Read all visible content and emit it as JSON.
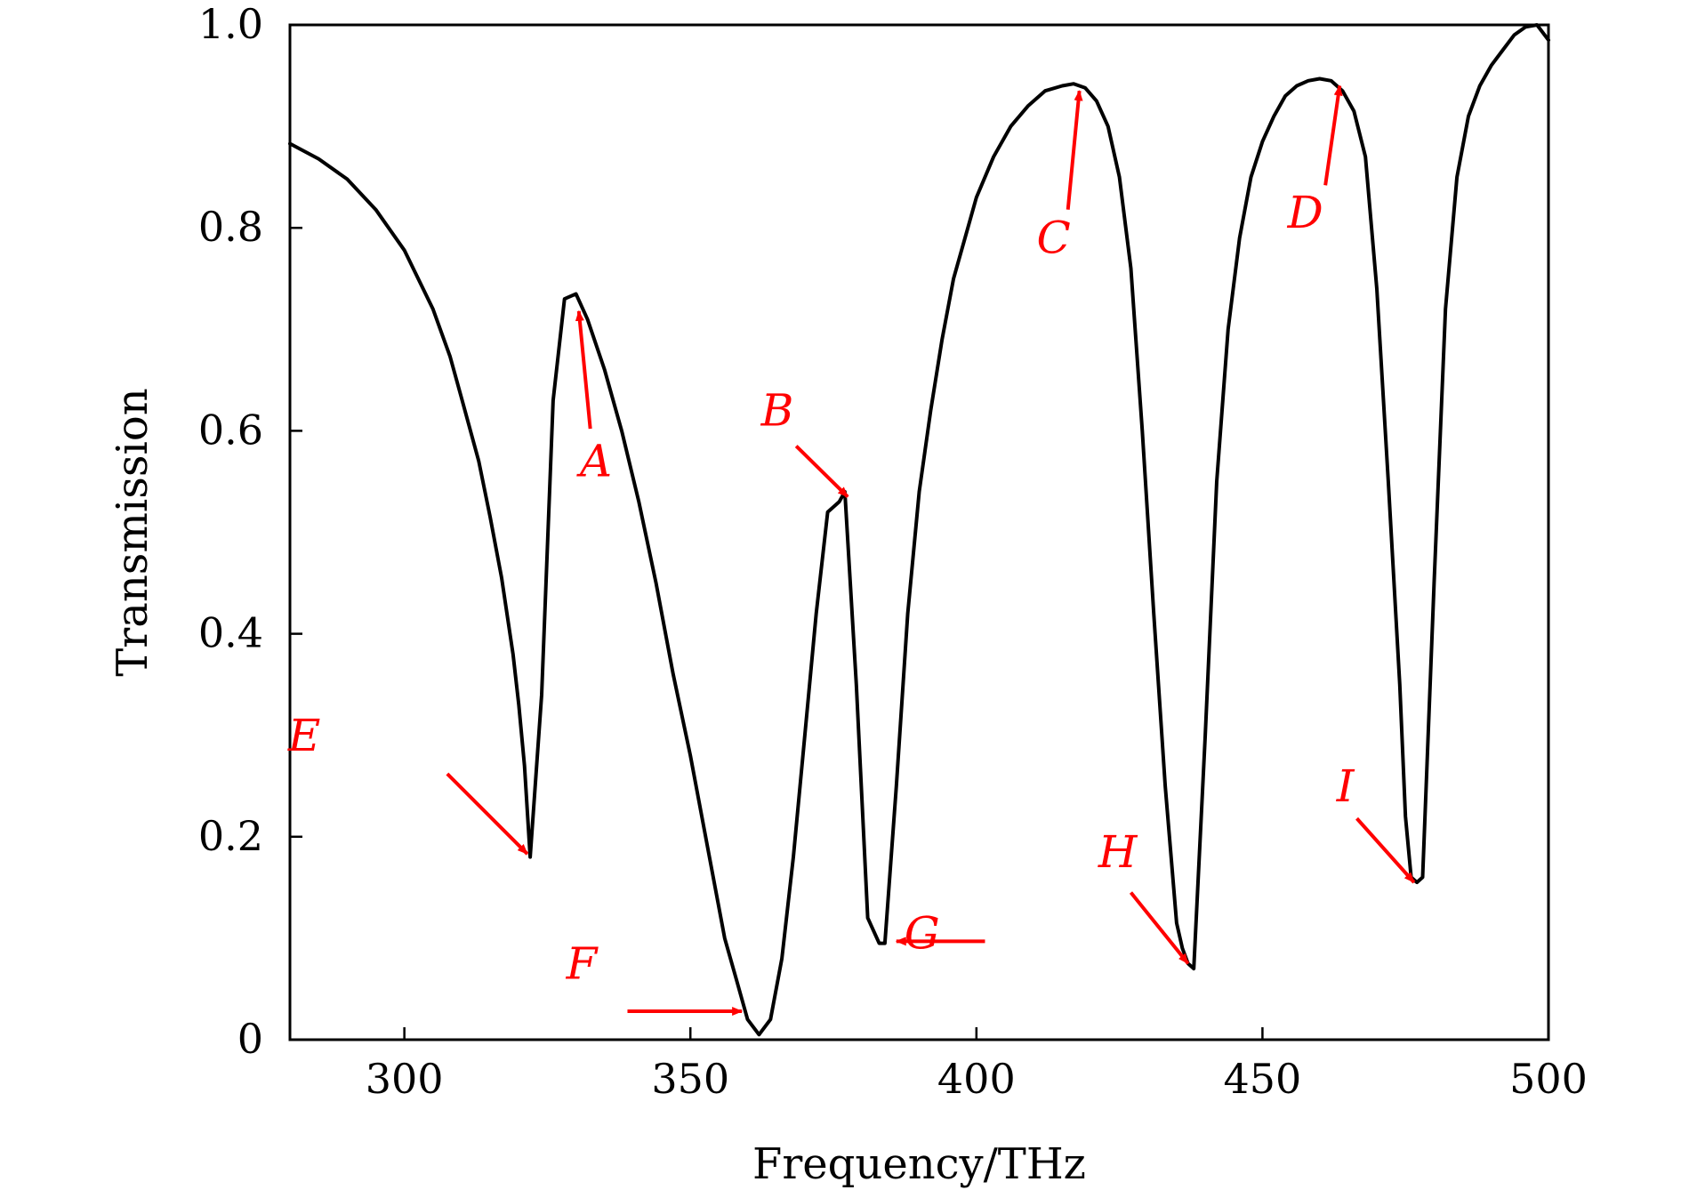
{
  "chart_data": {
    "type": "line",
    "title": "",
    "xlabel": "Frequency/THz",
    "ylabel": "Transmission",
    "xlim": [
      280,
      500
    ],
    "ylim": [
      0,
      1.0
    ],
    "grid": false,
    "x_ticks": [
      300,
      350,
      400,
      450,
      500
    ],
    "x_tick_labels": [
      "300",
      "350",
      "400",
      "450",
      "500"
    ],
    "y_ticks": [
      0,
      0.2,
      0.4,
      0.6,
      0.8,
      1.0
    ],
    "y_tick_labels": [
      "0",
      "0.2",
      "0.4",
      "0.6",
      "0.8",
      "1.0"
    ],
    "series": [
      {
        "color": "#000000",
        "x": [
          280,
          285,
          290,
          295,
          300,
          305,
          308,
          310,
          313,
          315,
          317,
          319,
          320,
          321,
          322,
          324,
          326,
          328,
          330,
          332,
          335,
          338,
          341,
          344,
          347,
          350,
          353,
          356,
          358,
          360,
          362,
          364,
          366,
          368,
          370,
          372,
          374,
          376,
          377,
          379,
          381,
          383,
          384,
          386,
          388,
          390,
          392,
          394,
          396,
          398,
          400,
          403,
          406,
          409,
          412,
          415,
          417,
          419,
          421,
          423,
          425,
          427,
          429,
          431,
          433,
          435,
          436,
          437,
          438,
          440,
          442,
          444,
          446,
          448,
          450,
          452,
          454,
          456,
          458,
          460,
          462,
          464,
          466,
          468,
          470,
          472,
          474,
          475,
          476,
          477,
          478,
          480,
          482,
          484,
          486,
          488,
          490,
          492,
          494,
          496,
          498,
          500
        ],
        "y": [
          0.883,
          0.868,
          0.848,
          0.818,
          0.778,
          0.72,
          0.673,
          0.632,
          0.57,
          0.515,
          0.455,
          0.38,
          0.33,
          0.27,
          0.18,
          0.34,
          0.63,
          0.73,
          0.735,
          0.71,
          0.66,
          0.6,
          0.53,
          0.45,
          0.36,
          0.28,
          0.19,
          0.1,
          0.06,
          0.02,
          0.005,
          0.02,
          0.08,
          0.18,
          0.3,
          0.42,
          0.52,
          0.53,
          0.54,
          0.35,
          0.12,
          0.095,
          0.095,
          0.25,
          0.42,
          0.54,
          0.62,
          0.69,
          0.75,
          0.79,
          0.83,
          0.87,
          0.9,
          0.92,
          0.935,
          0.94,
          0.942,
          0.938,
          0.925,
          0.9,
          0.85,
          0.76,
          0.6,
          0.42,
          0.25,
          0.115,
          0.09,
          0.075,
          0.07,
          0.3,
          0.55,
          0.7,
          0.79,
          0.85,
          0.885,
          0.91,
          0.93,
          0.94,
          0.945,
          0.947,
          0.945,
          0.935,
          0.915,
          0.87,
          0.74,
          0.55,
          0.35,
          0.22,
          0.16,
          0.155,
          0.16,
          0.45,
          0.72,
          0.85,
          0.91,
          0.94,
          0.96,
          0.975,
          0.99,
          0.998,
          1.0,
          0.985
        ]
      }
    ],
    "annotations": [
      {
        "label": "A",
        "text_x": 333.5,
        "text_y": 0.555,
        "target_x": 330.5,
        "target_y": 0.718,
        "tail_x": 332.5,
        "tail_y": 0.602,
        "color": "#ff0000"
      },
      {
        "label": "B",
        "text_x": 365.2,
        "text_y": 0.605,
        "target_x": 377.5,
        "target_y": 0.535,
        "tail_x": 368.5,
        "tail_y": 0.585,
        "color": "#ff0000"
      },
      {
        "label": "C",
        "text_x": 413.5,
        "text_y": 0.775,
        "target_x": 418,
        "target_y": 0.935,
        "tail_x": 416,
        "tail_y": 0.818,
        "color": "#ff0000"
      },
      {
        "label": "D",
        "text_x": 457.5,
        "text_y": 0.8,
        "target_x": 463.5,
        "target_y": 0.94,
        "tail_x": 461,
        "tail_y": 0.842,
        "color": "#ff0000"
      },
      {
        "label": "E",
        "text_x": 282.5,
        "text_y": 0.285,
        "target_x": 321.5,
        "target_y": 0.183,
        "tail_x": 307.5,
        "tail_y": 0.262,
        "color": "#ff0000"
      },
      {
        "label": "F",
        "text_x": 331,
        "text_y": 0.06,
        "target_x": 359,
        "target_y": 0.028,
        "tail_x": 339,
        "tail_y": 0.028,
        "color": "#ff0000"
      },
      {
        "label": "G",
        "text_x": 390.5,
        "text_y": 0.09,
        "target_x": 386,
        "target_y": 0.097,
        "tail_x": 401.5,
        "tail_y": 0.097,
        "color": "#ff0000"
      },
      {
        "label": "H",
        "text_x": 424.7,
        "text_y": 0.17,
        "target_x": 437,
        "target_y": 0.075,
        "tail_x": 427,
        "tail_y": 0.145,
        "color": "#ff0000"
      },
      {
        "label": "I",
        "text_x": 464.5,
        "text_y": 0.235,
        "target_x": 476.5,
        "target_y": 0.155,
        "tail_x": 466.5,
        "tail_y": 0.218,
        "color": "#ff0000"
      }
    ]
  }
}
